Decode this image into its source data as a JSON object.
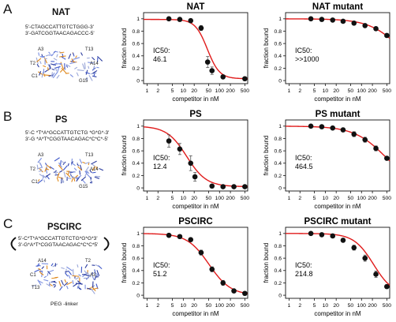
{
  "rows": [
    {
      "letter": "A",
      "name": "NAT",
      "seq_line1": "5'-CTAGCCATTGTCTGGG-3'",
      "seq_line2": "3'-GATCGGTAACAGACCC-5'",
      "mol_labels": [
        "A3",
        "T13",
        "T2",
        "A14",
        "C1",
        "G15"
      ]
    },
    {
      "letter": "B",
      "name": "PS",
      "seq_line1": "5'-C *T*A*GCCATTGTCTG *G*G*-3'",
      "seq_line2": "3'-G *A*T*CGGTAACAGAC*C*C*-5'",
      "mol_labels": [
        "A3",
        "T13",
        "T2",
        "A14",
        "C1",
        "G15"
      ]
    },
    {
      "letter": "C",
      "name": "PSCIRC",
      "seq_line1": "5'-C*T*A*GCCATTGTCTG*G*G*3'",
      "seq_line2": "3'-G*A*T*CGGTAACAGAC*C*C*5'",
      "mol_labels": [
        "A14",
        "T2",
        "C1",
        "A3",
        "T13"
      ],
      "linker": "PEG -linker"
    }
  ],
  "chart_data": [
    {
      "type": "scatter",
      "title": "NAT",
      "xlabel": "competitor in nM",
      "ylabel": "fraction bound",
      "xscale": "log",
      "xlim": [
        0.8,
        600
      ],
      "ylim": [
        -0.05,
        1.1
      ],
      "xticks": [
        1,
        2,
        5,
        10,
        20,
        50,
        100,
        200,
        500
      ],
      "xtick_labels": [
        "1",
        "2",
        "5",
        "10",
        "20",
        "50",
        "100",
        "200",
        "500"
      ],
      "yticks": [
        0,
        0.2,
        0.4,
        0.6,
        0.8,
        1
      ],
      "ytick_labels": [
        "0",
        "0.2",
        "0.4",
        "0.6",
        "0.8",
        "1"
      ],
      "annotation": [
        "IC50:",
        "46.1"
      ],
      "points": [
        {
          "x": 4,
          "y": 1.0,
          "err": 0.03
        },
        {
          "x": 8,
          "y": 0.99,
          "err": 0.03
        },
        {
          "x": 16,
          "y": 0.97,
          "err": 0.03
        },
        {
          "x": 31,
          "y": 0.85,
          "err": 0.04
        },
        {
          "x": 47,
          "y": 0.3,
          "err": 0.09
        },
        {
          "x": 62,
          "y": 0.16,
          "err": 0.06
        },
        {
          "x": 125,
          "y": 0.06,
          "err": 0.03
        },
        {
          "x": 500,
          "y": 0.03,
          "err": 0.02
        }
      ],
      "fit": {
        "top": 0.99,
        "bottom": 0.03,
        "ic50": 46.1,
        "hill": 2.6,
        "color": "#e01b1b"
      }
    },
    {
      "type": "scatter",
      "title": "NAT mutant",
      "xlabel": "competitor in nM",
      "ylabel": "fraction bound",
      "xscale": "log",
      "xlim": [
        0.8,
        600
      ],
      "ylim": [
        -0.05,
        1.1
      ],
      "xticks": [
        1,
        2,
        5,
        10,
        20,
        50,
        100,
        200,
        500
      ],
      "xtick_labels": [
        "1",
        "2",
        "5",
        "10",
        "20",
        "50",
        "100",
        "200",
        "500"
      ],
      "yticks": [
        0,
        0.2,
        0.4,
        0.6,
        0.8,
        1
      ],
      "ytick_labels": [
        "0",
        "0.2",
        "0.4",
        "0.6",
        "0.8",
        "1"
      ],
      "annotation": [
        "IC50:",
        ">>1000"
      ],
      "points": [
        {
          "x": 4,
          "y": 1.0,
          "err": 0.02
        },
        {
          "x": 8,
          "y": 0.99,
          "err": 0.02
        },
        {
          "x": 16,
          "y": 0.98,
          "err": 0.02
        },
        {
          "x": 31,
          "y": 0.96,
          "err": 0.02
        },
        {
          "x": 62,
          "y": 0.93,
          "err": 0.03
        },
        {
          "x": 125,
          "y": 0.89,
          "err": 0.03
        },
        {
          "x": 250,
          "y": 0.84,
          "err": 0.03
        },
        {
          "x": 500,
          "y": 0.73,
          "err": 0.03
        }
      ],
      "fit": {
        "top": 1.0,
        "bottom": 0.0,
        "ic50": 1300,
        "hill": 1.0,
        "color": "#e01b1b"
      }
    },
    {
      "type": "scatter",
      "title": "PS",
      "xlabel": "competitor in nM",
      "ylabel": "fraction bound",
      "xscale": "log",
      "xlim": [
        0.8,
        600
      ],
      "ylim": [
        -0.05,
        1.1
      ],
      "xticks": [
        1,
        2,
        5,
        10,
        20,
        50,
        100,
        200,
        500
      ],
      "xtick_labels": [
        "1",
        "2",
        "5",
        "10",
        "20",
        "50",
        "100",
        "200",
        "500"
      ],
      "yticks": [
        0,
        0.2,
        0.4,
        0.6,
        0.8,
        1
      ],
      "ytick_labels": [
        "0",
        "0.2",
        "0.4",
        "0.6",
        "0.8",
        "1"
      ],
      "annotation": [
        "IC50:",
        "12.4"
      ],
      "points": [
        {
          "x": 4,
          "y": 0.76,
          "err": 0.1
        },
        {
          "x": 8,
          "y": 0.63,
          "err": 0.09
        },
        {
          "x": 16,
          "y": 0.4,
          "err": 0.12
        },
        {
          "x": 21,
          "y": 0.18,
          "err": 0.07
        },
        {
          "x": 62,
          "y": 0.03,
          "err": 0.02
        },
        {
          "x": 125,
          "y": 0.02,
          "err": 0.01
        },
        {
          "x": 250,
          "y": 0.02,
          "err": 0.01
        },
        {
          "x": 500,
          "y": 0.02,
          "err": 0.01
        }
      ],
      "fit": {
        "top": 1.0,
        "bottom": 0.02,
        "ic50": 12.4,
        "hill": 1.6,
        "color": "#e01b1b"
      }
    },
    {
      "type": "scatter",
      "title": "PS mutant",
      "xlabel": "competitor in nM",
      "ylabel": "fraction bound",
      "xscale": "log",
      "xlim": [
        0.8,
        600
      ],
      "ylim": [
        -0.05,
        1.1
      ],
      "xticks": [
        1,
        2,
        5,
        10,
        20,
        50,
        100,
        200,
        500
      ],
      "xtick_labels": [
        "1",
        "2",
        "5",
        "10",
        "20",
        "50",
        "100",
        "200",
        "500"
      ],
      "yticks": [
        0,
        0.2,
        0.4,
        0.6,
        0.8,
        1
      ],
      "ytick_labels": [
        "0",
        "0.2",
        "0.4",
        "0.6",
        "0.8",
        "1"
      ],
      "annotation": [
        "IC50:",
        "464.5"
      ],
      "points": [
        {
          "x": 4,
          "y": 1.0,
          "err": 0.02
        },
        {
          "x": 8,
          "y": 0.99,
          "err": 0.02
        },
        {
          "x": 16,
          "y": 0.97,
          "err": 0.02
        },
        {
          "x": 31,
          "y": 0.94,
          "err": 0.03
        },
        {
          "x": 62,
          "y": 0.87,
          "err": 0.04
        },
        {
          "x": 125,
          "y": 0.78,
          "err": 0.04
        },
        {
          "x": 250,
          "y": 0.64,
          "err": 0.04
        },
        {
          "x": 500,
          "y": 0.48,
          "err": 0.03
        }
      ],
      "fit": {
        "top": 1.0,
        "bottom": 0.0,
        "ic50": 464.5,
        "hill": 1.0,
        "color": "#e01b1b"
      }
    },
    {
      "type": "scatter",
      "title": "PSCIRC",
      "xlabel": "competitor in nM",
      "ylabel": "fraction bound",
      "xscale": "log",
      "xlim": [
        0.8,
        600
      ],
      "ylim": [
        -0.05,
        1.1
      ],
      "xticks": [
        1,
        2,
        5,
        10,
        20,
        50,
        100,
        200,
        500
      ],
      "xtick_labels": [
        "1",
        "2",
        "5",
        "10",
        "20",
        "50",
        "100",
        "200",
        "500"
      ],
      "yticks": [
        0,
        0.2,
        0.4,
        0.6,
        0.8,
        1
      ],
      "ytick_labels": [
        "0",
        "0.2",
        "0.4",
        "0.6",
        "0.8",
        "1"
      ],
      "annotation": [
        "IC50:",
        "51.2"
      ],
      "points": [
        {
          "x": 4,
          "y": 0.97,
          "err": 0.03
        },
        {
          "x": 8,
          "y": 0.95,
          "err": 0.03
        },
        {
          "x": 16,
          "y": 0.9,
          "err": 0.03
        },
        {
          "x": 31,
          "y": 0.69,
          "err": 0.04
        },
        {
          "x": 62,
          "y": 0.42,
          "err": 0.04
        },
        {
          "x": 125,
          "y": 0.2,
          "err": 0.04
        },
        {
          "x": 250,
          "y": 0.07,
          "err": 0.02
        },
        {
          "x": 500,
          "y": 0.03,
          "err": 0.02
        }
      ],
      "fit": {
        "top": 1.0,
        "bottom": 0.0,
        "ic50": 51.2,
        "hill": 1.45,
        "color": "#e01b1b"
      }
    },
    {
      "type": "scatter",
      "title": "PSCIRC mutant",
      "xlabel": "competitor in nM",
      "ylabel": "fraction bound",
      "xscale": "log",
      "xlim": [
        0.8,
        600
      ],
      "ylim": [
        -0.05,
        1.1
      ],
      "xticks": [
        1,
        2,
        5,
        10,
        20,
        50,
        100,
        200,
        500
      ],
      "xtick_labels": [
        "1",
        "2",
        "5",
        "10",
        "20",
        "50",
        "100",
        "200",
        "500"
      ],
      "yticks": [
        0,
        0.2,
        0.4,
        0.6,
        0.8,
        1
      ],
      "ytick_labels": [
        "0",
        "0.2",
        "0.4",
        "0.6",
        "0.8",
        "1"
      ],
      "annotation": [
        "IC50:",
        "214.8"
      ],
      "points": [
        {
          "x": 4,
          "y": 1.0,
          "err": 0.02
        },
        {
          "x": 8,
          "y": 0.98,
          "err": 0.02
        },
        {
          "x": 16,
          "y": 0.96,
          "err": 0.03
        },
        {
          "x": 31,
          "y": 0.89,
          "err": 0.03
        },
        {
          "x": 62,
          "y": 0.77,
          "err": 0.04
        },
        {
          "x": 125,
          "y": 0.6,
          "err": 0.05
        },
        {
          "x": 250,
          "y": 0.34,
          "err": 0.05
        },
        {
          "x": 500,
          "y": 0.14,
          "err": 0.03
        }
      ],
      "fit": {
        "top": 1.0,
        "bottom": 0.0,
        "ic50": 214.8,
        "hill": 1.6,
        "color": "#e01b1b"
      }
    }
  ]
}
